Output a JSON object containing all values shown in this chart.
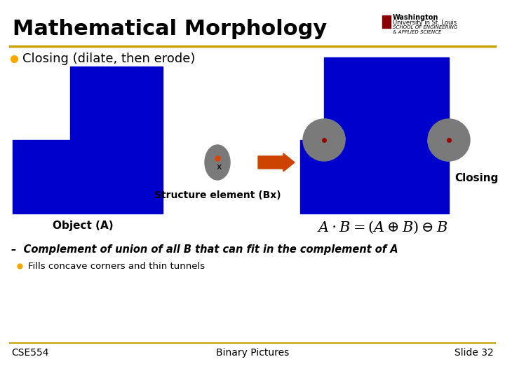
{
  "title": "Mathematical Morphology",
  "bg_color": "#ffffff",
  "bullet1": "Closing (dilate, then erode)",
  "bullet_color": "#FFA500",
  "blue_color": "#0000CC",
  "cyan_color": "#00CCDD",
  "gray_color": "#7a7a7a",
  "orange_arrow": "#CC4400",
  "red_dot": "#990000",
  "object_A_label": "Object (A)",
  "struct_label": "Structure element (Bx)",
  "closing_label": "Closing",
  "dash_label": "–  Complement of union of all B that can fit in the complement of A",
  "sub_bullet": "Fills concave corners and thin tunnels",
  "footer_left": "CSE554",
  "footer_center": "Binary Pictures",
  "footer_right": "Slide 32",
  "formula": "$A \\cdot B = (A \\oplus B) \\ominus B$",
  "gold_line": "#C8A000"
}
